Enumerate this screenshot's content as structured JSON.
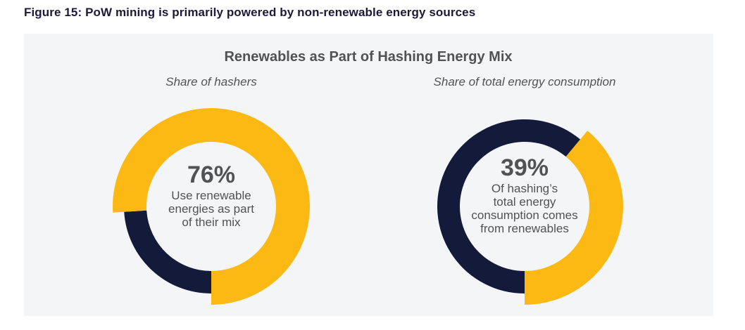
{
  "figure_title": "Figure 15: PoW mining is primarily powered by non-renewable energy sources",
  "chart_data": {
    "type": "pie",
    "title": "Renewables as Part of Hashing Energy Mix",
    "colors": {
      "renewable": "#FDB913",
      "other": "#131a3a"
    },
    "charts": [
      {
        "subtitle": "Share of hashers",
        "value_label": "76%",
        "value": 76,
        "description_lines": [
          "Use renewable",
          "energies as part",
          "of their mix"
        ]
      },
      {
        "subtitle": "Share of total energy consumption",
        "value_label": "39%",
        "value": 39,
        "description_lines": [
          "Of hashing’s",
          "total energy",
          "consumption comes",
          "from renewables"
        ]
      }
    ]
  }
}
